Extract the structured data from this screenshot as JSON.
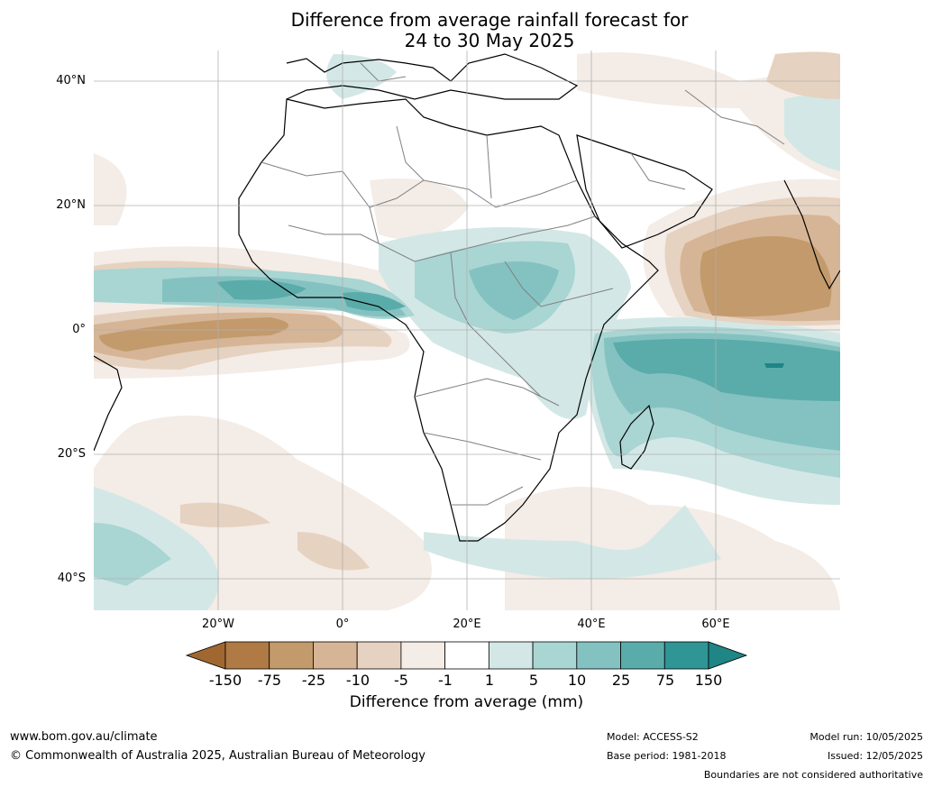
{
  "title": {
    "line1": "Difference from average rainfall forecast for",
    "line2": "24 to 30 May 2025"
  },
  "map": {
    "lat_labels": [
      "40°N",
      "20°N",
      "0°",
      "20°S",
      "40°S"
    ],
    "lon_labels": [
      "20°W",
      "0°",
      "20°E",
      "40°E",
      "60°E"
    ],
    "ocean_color": "#ffffff",
    "coast_color": "#000000",
    "border_color": "#808080"
  },
  "legend": {
    "title": "Difference from average (mm)",
    "ticks": [
      "-150",
      "-75",
      "-25",
      "-10",
      "-5",
      "-1",
      "1",
      "5",
      "10",
      "25",
      "75",
      "150"
    ],
    "colors": [
      "#a06830",
      "#b07a45",
      "#c29a6c",
      "#d6b596",
      "#e6d2c0",
      "#f4ece6",
      "#ffffff",
      "#d3e8e6",
      "#a9d5d3",
      "#84c2c1",
      "#5aacaa",
      "#2f9695",
      "#1f8585"
    ]
  },
  "footer": {
    "url": "www.bom.gov.au/climate",
    "copyright": "© Commonwealth of Australia 2025, Australian Bureau of Meteorology",
    "model": "Model: ACCESS-S2",
    "base_period": "Base period: 1981-2018",
    "model_run": "Model run: 10/05/2025",
    "issued": "Issued: 12/05/2025",
    "disclaimer": "Boundaries are not considered authoritative"
  }
}
